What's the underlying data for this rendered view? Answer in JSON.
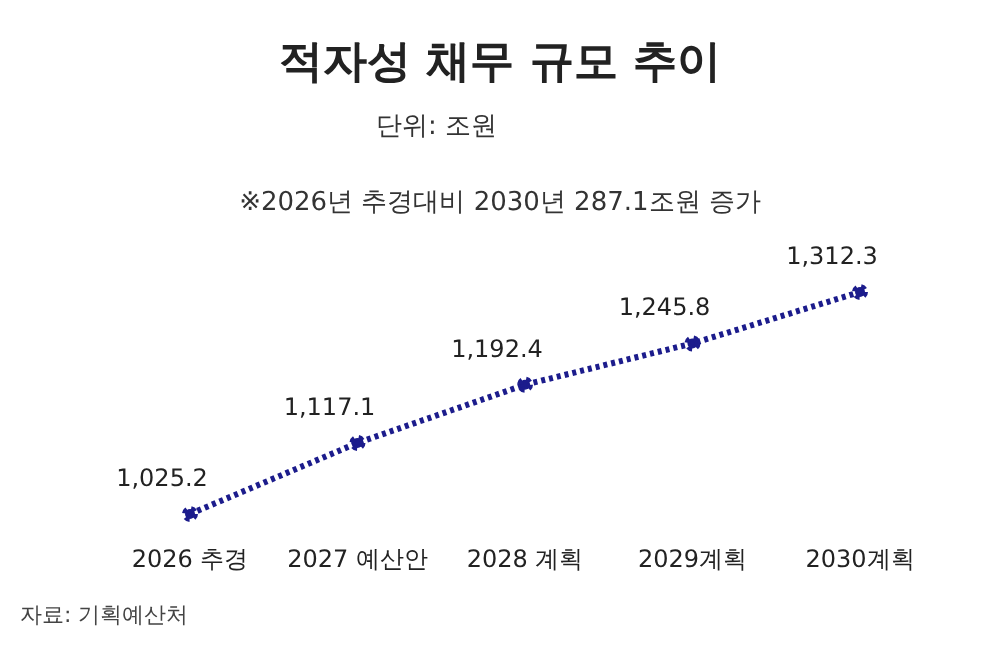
{
  "chart_data": {
    "type": "line",
    "title": "적자성 채무 규모 추이",
    "subtitle": "단위: 조원",
    "annotations": [
      "※2026년 추경대비 2030년 287.1조원 증가",
      "자료: 기획예산처"
    ],
    "categories": [
      "2026 추경",
      "2027 예산안",
      "2028 계획",
      "2029계획",
      "2030계획"
    ],
    "series": [
      {
        "color": "#1c1c8c",
        "values": [
          1025.2,
          1117.1,
          1192.4,
          1245.8,
          1312.3
        ],
        "value_labels": [
          "1,025.2",
          "1,117.1",
          "1,192.4",
          "1,245.8",
          "1,312.3"
        ]
      }
    ],
    "marker": "circle",
    "line_style": "dotted",
    "grid": false,
    "legend": false
  }
}
